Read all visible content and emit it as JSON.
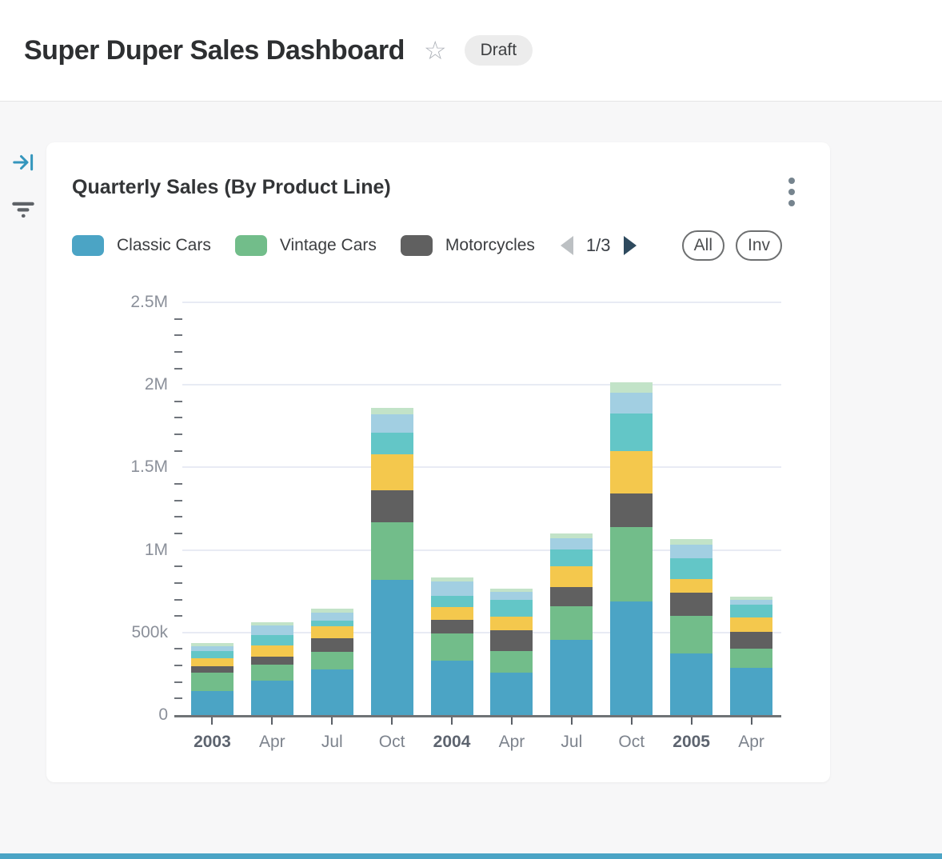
{
  "header": {
    "title": "Super Duper Sales Dashboard",
    "star_icon": "☆",
    "status_badge": "Draft"
  },
  "sidebar": {
    "icons": [
      {
        "name": "collapse-panel-icon",
        "color": "#3596bd"
      },
      {
        "name": "filter-icon",
        "color": "#5f6368"
      }
    ]
  },
  "card": {
    "title": "Quarterly Sales (By Product Line)",
    "menu_icon": "kebab-menu",
    "legend": [
      {
        "label": "Classic Cars",
        "color": "#4ba4c5"
      },
      {
        "label": "Vintage Cars",
        "color": "#72bd8a"
      },
      {
        "label": "Motorcycles",
        "color": "#606060"
      }
    ],
    "pagination": {
      "current": "1/3",
      "prev_enabled": false,
      "next_enabled": true
    },
    "buttons": {
      "all": "All",
      "inv": "Inv"
    }
  },
  "chart_data": {
    "type": "bar",
    "stacked": true,
    "title": "Quarterly Sales (By Product Line)",
    "xlabel": "",
    "ylabel": "",
    "ylim": [
      0,
      2500000
    ],
    "grid": true,
    "legend_position": "top",
    "yticks": [
      {
        "value": 0,
        "label": "0"
      },
      {
        "value": 500000,
        "label": "500k"
      },
      {
        "value": 1000000,
        "label": "1M"
      },
      {
        "value": 1500000,
        "label": "1.5M"
      },
      {
        "value": 2000000,
        "label": "2M"
      },
      {
        "value": 2500000,
        "label": "2.5M"
      }
    ],
    "minor_tick_step": 100000,
    "categories": [
      {
        "label": "2003",
        "bold": true
      },
      {
        "label": "Apr",
        "bold": false
      },
      {
        "label": "Jul",
        "bold": false
      },
      {
        "label": "Oct",
        "bold": false
      },
      {
        "label": "2004",
        "bold": true
      },
      {
        "label": "Apr",
        "bold": false
      },
      {
        "label": "Jul",
        "bold": false
      },
      {
        "label": "Oct",
        "bold": false
      },
      {
        "label": "2005",
        "bold": true
      },
      {
        "label": "Apr",
        "bold": false
      }
    ],
    "series": [
      {
        "name": "Classic Cars",
        "in_legend": true,
        "color": "#4ba4c5",
        "values": [
          145000,
          207000,
          275000,
          820000,
          328000,
          255000,
          457000,
          690000,
          374000,
          287000
        ]
      },
      {
        "name": "Vintage Cars",
        "in_legend": true,
        "color": "#72bd8a",
        "values": [
          111000,
          97000,
          110000,
          347000,
          166000,
          132000,
          202000,
          447000,
          226000,
          116000
        ]
      },
      {
        "name": "Motorcycles",
        "in_legend": true,
        "color": "#606060",
        "values": [
          39000,
          48000,
          81000,
          194000,
          84000,
          129000,
          116000,
          205000,
          139000,
          100000
        ]
      },
      {
        "name": "",
        "in_legend": false,
        "color": "#f4c84d",
        "values": [
          48000,
          68000,
          73000,
          218000,
          78000,
          81000,
          126000,
          258000,
          87000,
          90000
        ]
      },
      {
        "name": "",
        "in_legend": false,
        "color": "#63c6c7",
        "values": [
          44000,
          64000,
          32000,
          132000,
          68000,
          102000,
          100000,
          226000,
          122000,
          76000
        ]
      },
      {
        "name": "",
        "in_legend": false,
        "color": "#a2cfe2",
        "values": [
          29000,
          58000,
          48000,
          110000,
          84000,
          48000,
          69000,
          129000,
          84000,
          27000
        ]
      },
      {
        "name": "",
        "in_legend": false,
        "color": "#c2e3c8",
        "values": [
          19000,
          19000,
          24000,
          40000,
          26000,
          21000,
          32000,
          61000,
          35000,
          21000
        ]
      }
    ]
  },
  "colors": {
    "page_bg": "#f7f7f8",
    "card_bg": "#ffffff",
    "gridline": "#e8ebf4",
    "axis_label": "#8b909a",
    "baseline": "#6f7376",
    "bottom_strip": "#4ba4c5"
  }
}
